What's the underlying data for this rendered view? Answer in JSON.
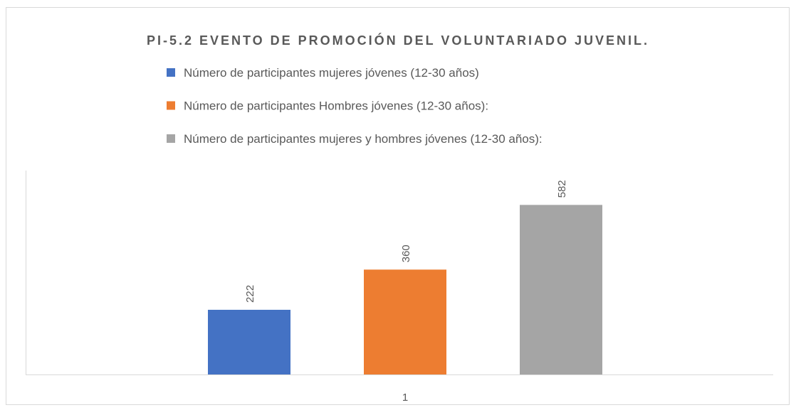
{
  "chart_data": {
    "type": "bar",
    "title": "PI-5.2 EVENTO DE PROMOCIÓN DEL VOLUNTARIADO JUVENIL.",
    "categories": [
      "1"
    ],
    "series": [
      {
        "name": "Número de participantes mujeres jóvenes (12-30 años)",
        "color": "#4472c4",
        "values": [
          222
        ]
      },
      {
        "name": "Número de participantes Hombres jóvenes (12-30 años):",
        "color": "#ed7d31",
        "values": [
          360
        ]
      },
      {
        "name": "Número de participantes mujeres y hombres jóvenes (12-30 años):",
        "color": "#a5a5a5",
        "values": [
          582
        ]
      }
    ],
    "ylim": [
      0,
      700
    ],
    "legend": "top"
  }
}
